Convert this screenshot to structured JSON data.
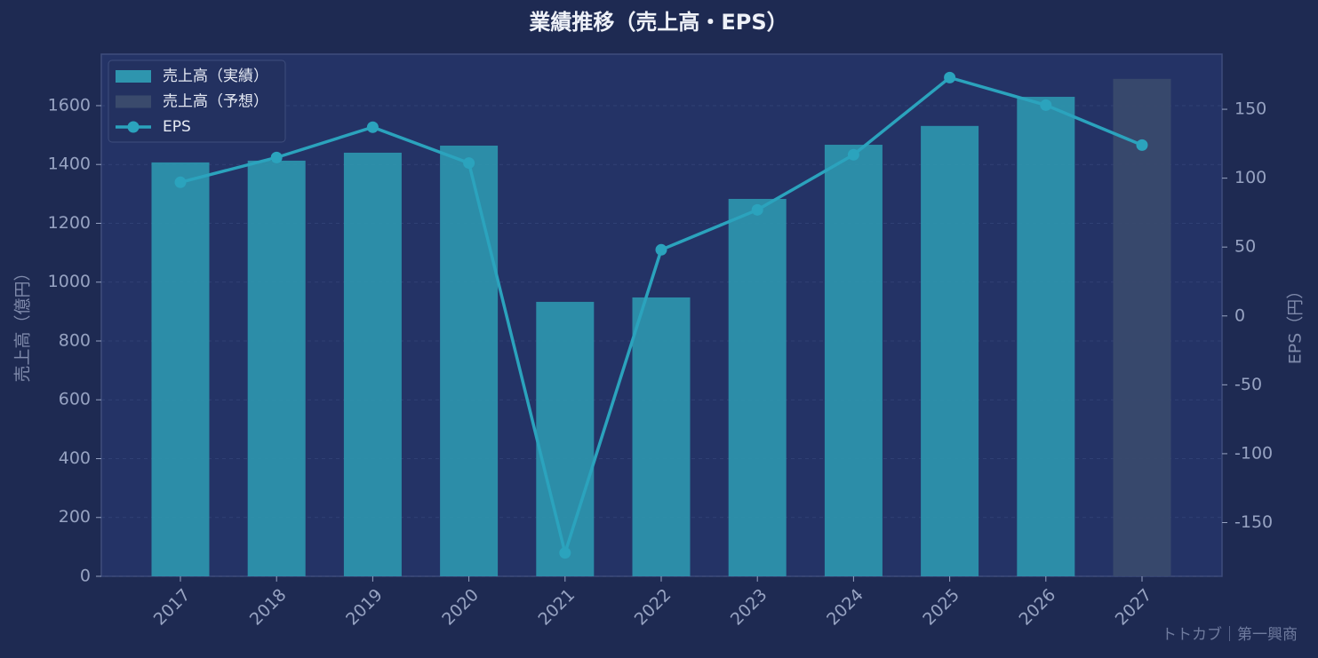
{
  "chart_data": {
    "type": "bar",
    "title": "業績推移（売上高・EPS）",
    "y_label": "売上高（億円）",
    "y2_label": "EPS（円）",
    "credit": "トトカブ｜第一興商",
    "categories": [
      "2017",
      "2018",
      "2019",
      "2020",
      "2021",
      "2022",
      "2023",
      "2024",
      "2025",
      "2026",
      "2027"
    ],
    "series": [
      {
        "name": "売上高（実績）",
        "type": "bar",
        "color": "#2e95ae",
        "values": [
          1407,
          1413,
          1440,
          1464,
          933,
          948,
          1283,
          1467,
          1531,
          1630,
          null
        ]
      },
      {
        "name": "売上高（予想）",
        "type": "bar",
        "color": "#3a4a6c",
        "values": [
          null,
          null,
          null,
          null,
          null,
          null,
          null,
          null,
          null,
          null,
          1691
        ]
      },
      {
        "name": "EPS",
        "type": "line",
        "axis": "y2",
        "color": "#2ba3bd",
        "values": [
          97,
          115,
          137,
          111,
          -172,
          48,
          77,
          117,
          173,
          153,
          124
        ]
      }
    ],
    "ylim": [
      0,
      1775
    ],
    "yticks": [
      0,
      200,
      400,
      600,
      800,
      1000,
      1200,
      1400,
      1600
    ],
    "y2lim": [
      -189,
      190
    ],
    "y2ticks": [
      -150,
      -100,
      -50,
      0,
      50,
      100,
      150
    ],
    "grid": true,
    "legend": "upper-left"
  }
}
